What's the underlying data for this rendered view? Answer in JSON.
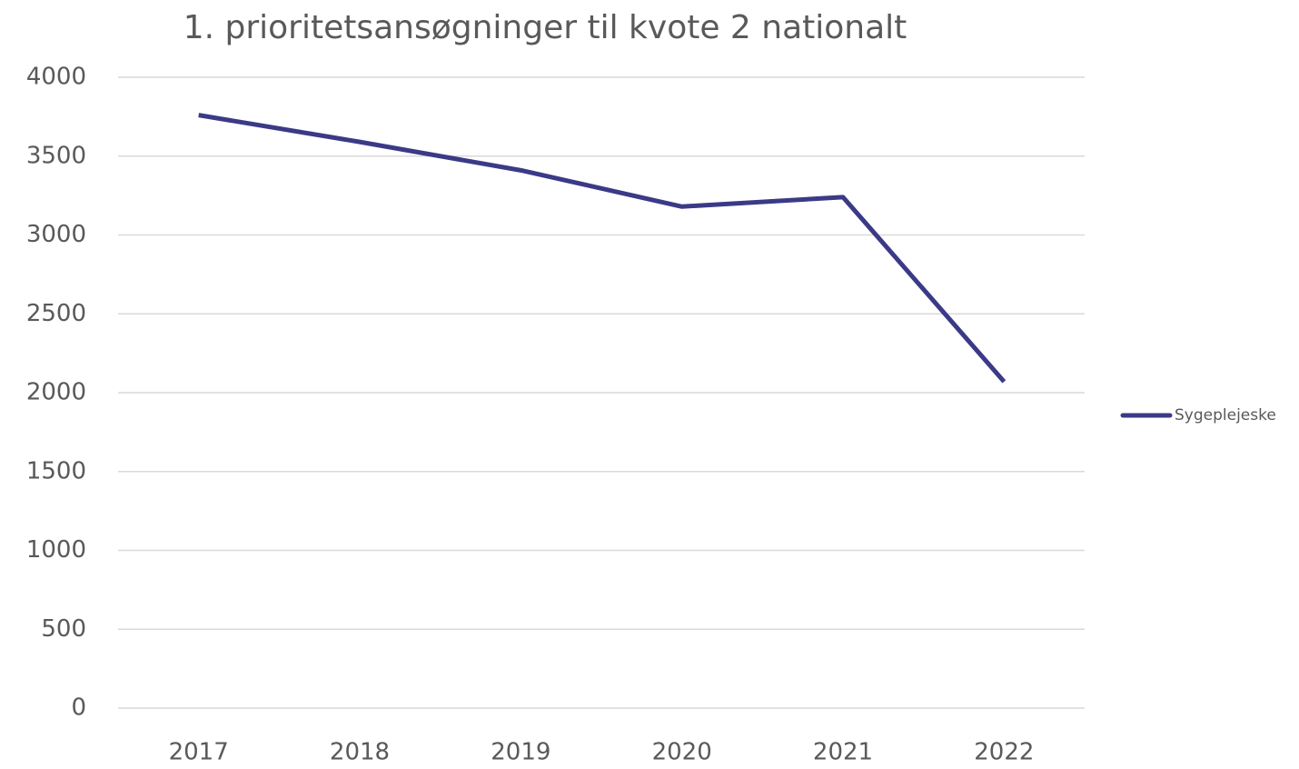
{
  "chart_data": {
    "type": "line",
    "title": "1. prioritetsansøgninger til kvote 2 nationalt",
    "categories": [
      "2017",
      "2018",
      "2019",
      "2020",
      "2021",
      "2022"
    ],
    "series": [
      {
        "name": "Sygeplejeske",
        "color": "#3b3a87",
        "values": [
          3760,
          3590,
          3410,
          3180,
          3240,
          2070
        ]
      }
    ],
    "ylim": [
      0,
      4000
    ],
    "yticks": [
      0,
      500,
      1000,
      1500,
      2000,
      2500,
      3000,
      3500,
      4000
    ],
    "grid": true,
    "legend": "right"
  }
}
